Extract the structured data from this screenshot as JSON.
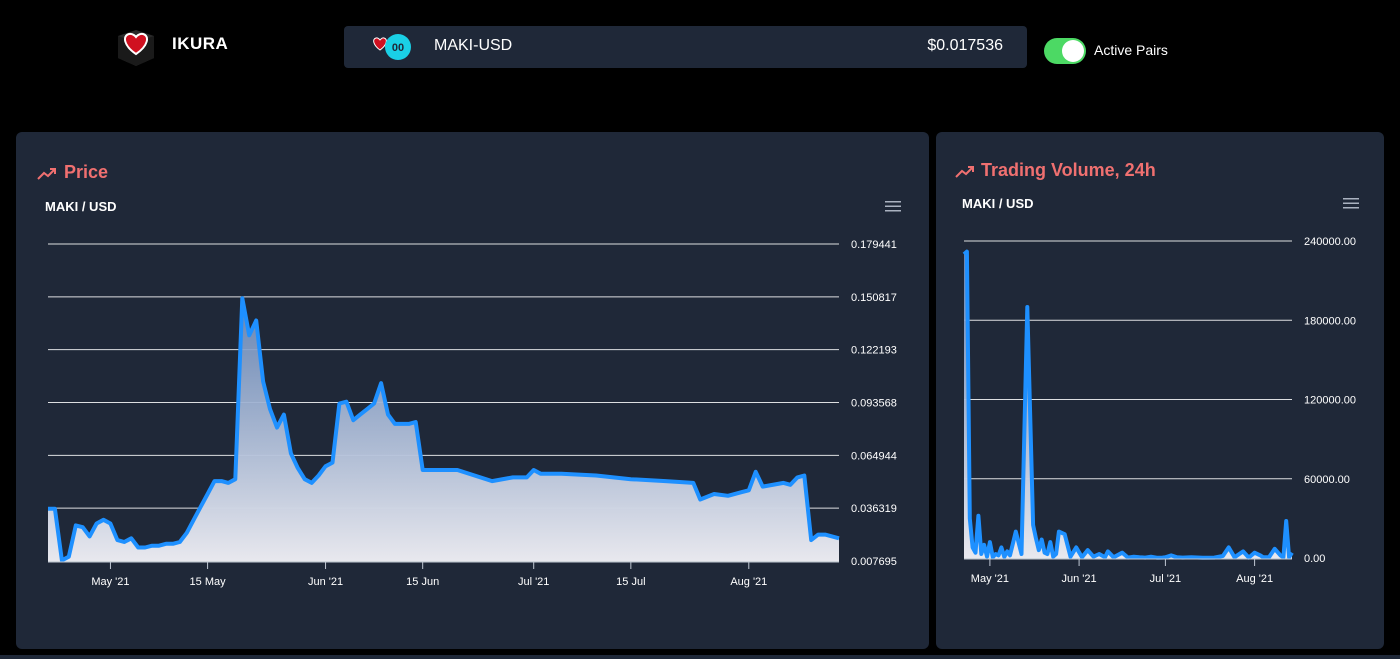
{
  "header": {
    "brand": "IKURA",
    "pair": "MAKI-USD",
    "price": "$0.017536",
    "toggle_label": "Active Pairs",
    "toggle_on": true,
    "toggle_color": "#4cd964"
  },
  "price_panel": {
    "title": "Price",
    "subtitle": "MAKI / USD",
    "icon": "trending-up-icon",
    "menu_icon": "hamburger-menu-icon"
  },
  "volume_panel": {
    "title": "Trading Volume, 24h",
    "subtitle": "MAKI / USD",
    "icon": "trending-up-icon",
    "menu_icon": "hamburger-menu-icon"
  },
  "colors": {
    "accent": "#f07070",
    "line": "#1e90ff",
    "panel": "#1f2838",
    "background": "#000000"
  },
  "chart_data": [
    {
      "type": "area",
      "title": "MAKI / USD",
      "x_start": "2021-04-22",
      "x_end": "2021-08-14",
      "x_tick_labels": [
        "May '21",
        "15 May",
        "Jun '21",
        "15 Jun",
        "Jul '21",
        "15 Jul",
        "Aug '21"
      ],
      "x_tick_dates": [
        "2021-05-01",
        "2021-05-15",
        "2021-06-01",
        "2021-06-15",
        "2021-07-01",
        "2021-07-15",
        "2021-08-01"
      ],
      "y_tick_labels": [
        "0.179441",
        "0.150817",
        "0.122193",
        "0.093568",
        "0.064944",
        "0.036319",
        "0.007695"
      ],
      "ylim": [
        0.007695,
        0.179441
      ],
      "grid": true,
      "series": [
        {
          "dates": [
            "2021-04-22",
            "2021-04-23",
            "2021-04-24",
            "2021-04-25",
            "2021-04-26",
            "2021-04-27",
            "2021-04-28",
            "2021-04-29",
            "2021-04-30",
            "2021-05-01",
            "2021-05-02",
            "2021-05-03",
            "2021-05-04",
            "2021-05-05",
            "2021-05-06",
            "2021-05-07",
            "2021-05-08",
            "2021-05-09",
            "2021-05-10",
            "2021-05-11",
            "2021-05-12",
            "2021-05-13",
            "2021-05-14",
            "2021-05-15",
            "2021-05-16",
            "2021-05-17",
            "2021-05-18",
            "2021-05-19",
            "2021-05-20",
            "2021-05-21",
            "2021-05-22",
            "2021-05-23",
            "2021-05-24",
            "2021-05-25",
            "2021-05-26",
            "2021-05-27",
            "2021-05-28",
            "2021-05-29",
            "2021-05-30",
            "2021-05-31",
            "2021-06-01",
            "2021-06-02",
            "2021-06-03",
            "2021-06-04",
            "2021-06-05",
            "2021-06-06",
            "2021-06-07",
            "2021-06-08",
            "2021-06-09",
            "2021-06-10",
            "2021-06-11",
            "2021-06-12",
            "2021-06-13",
            "2021-06-14",
            "2021-06-15",
            "2021-06-20",
            "2021-06-25",
            "2021-06-28",
            "2021-06-30",
            "2021-07-01",
            "2021-07-02",
            "2021-07-05",
            "2021-07-10",
            "2021-07-15",
            "2021-07-20",
            "2021-07-24",
            "2021-07-25",
            "2021-07-27",
            "2021-07-29",
            "2021-07-31",
            "2021-08-01",
            "2021-08-02",
            "2021-08-03",
            "2021-08-06",
            "2021-08-07",
            "2021-08-08",
            "2021-08-09",
            "2021-08-10",
            "2021-08-11",
            "2021-08-12",
            "2021-08-14"
          ],
          "values": [
            0.036,
            0.036,
            0.008,
            0.01,
            0.027,
            0.026,
            0.021,
            0.028,
            0.03,
            0.028,
            0.019,
            0.018,
            0.02,
            0.015,
            0.015,
            0.016,
            0.016,
            0.017,
            0.017,
            0.018,
            0.023,
            0.03,
            0.037,
            0.044,
            0.051,
            0.051,
            0.05,
            0.052,
            0.15,
            0.13,
            0.138,
            0.105,
            0.09,
            0.08,
            0.087,
            0.066,
            0.058,
            0.052,
            0.05,
            0.054,
            0.059,
            0.061,
            0.093,
            0.094,
            0.084,
            0.087,
            0.09,
            0.093,
            0.104,
            0.087,
            0.082,
            0.082,
            0.082,
            0.083,
            0.057,
            0.057,
            0.051,
            0.053,
            0.053,
            0.057,
            0.055,
            0.055,
            0.054,
            0.052,
            0.051,
            0.05,
            0.041,
            0.044,
            0.043,
            0.045,
            0.046,
            0.056,
            0.048,
            0.05,
            0.049,
            0.053,
            0.054,
            0.019,
            0.022,
            0.022,
            0.02
          ]
        }
      ]
    },
    {
      "type": "area",
      "title": "MAKI / USD",
      "x_start": "2021-04-22",
      "x_end": "2021-08-14",
      "x_tick_labels": [
        "May '21",
        "Jun '21",
        "Jul '21",
        "Aug '21"
      ],
      "x_tick_dates": [
        "2021-05-01",
        "2021-06-01",
        "2021-07-01",
        "2021-08-01"
      ],
      "y_tick_labels": [
        "240000.00",
        "180000.00",
        "120000.00",
        "60000.00",
        "0.00"
      ],
      "ylim": [
        0,
        240000
      ],
      "grid": true,
      "series": [
        {
          "dates": [
            "2021-04-22",
            "2021-04-23",
            "2021-04-24",
            "2021-04-25",
            "2021-04-26",
            "2021-04-27",
            "2021-04-28",
            "2021-04-29",
            "2021-04-30",
            "2021-05-01",
            "2021-05-02",
            "2021-05-03",
            "2021-05-04",
            "2021-05-05",
            "2021-05-06",
            "2021-05-07",
            "2021-05-08",
            "2021-05-10",
            "2021-05-12",
            "2021-05-14",
            "2021-05-16",
            "2021-05-17",
            "2021-05-18",
            "2021-05-19",
            "2021-05-20",
            "2021-05-21",
            "2021-05-22",
            "2021-05-23",
            "2021-05-24",
            "2021-05-25",
            "2021-05-27",
            "2021-05-29",
            "2021-05-31",
            "2021-06-02",
            "2021-06-04",
            "2021-06-06",
            "2021-06-08",
            "2021-06-10",
            "2021-06-11",
            "2021-06-13",
            "2021-06-16",
            "2021-06-18",
            "2021-06-20",
            "2021-06-22",
            "2021-06-24",
            "2021-06-26",
            "2021-06-28",
            "2021-06-30",
            "2021-07-01",
            "2021-07-03",
            "2021-07-05",
            "2021-07-07",
            "2021-07-10",
            "2021-07-14",
            "2021-07-18",
            "2021-07-21",
            "2021-07-23",
            "2021-07-25",
            "2021-07-28",
            "2021-07-30",
            "2021-08-01",
            "2021-08-03",
            "2021-08-04",
            "2021-08-06",
            "2021-08-08",
            "2021-08-10",
            "2021-08-11",
            "2021-08-12",
            "2021-08-13",
            "2021-08-14"
          ],
          "values": [
            230000,
            232000,
            30000,
            8000,
            4000,
            32000,
            3000,
            10000,
            1000,
            12000,
            500,
            3000,
            2000,
            8000,
            800,
            5000,
            2000,
            20000,
            3000,
            190000,
            25000,
            15000,
            6000,
            14000,
            4000,
            3000,
            12000,
            1000,
            3000,
            20000,
            18000,
            1000,
            8000,
            500,
            6000,
            1000,
            3000,
            500,
            5000,
            500,
            4000,
            300,
            1000,
            500,
            300,
            1000,
            200,
            300,
            500,
            2000,
            500,
            300,
            500,
            200,
            300,
            1500,
            8000,
            500,
            5000,
            300,
            4000,
            2000,
            500,
            500,
            7000,
            2000,
            500,
            28000,
            500,
            4000
          ]
        }
      ]
    }
  ]
}
